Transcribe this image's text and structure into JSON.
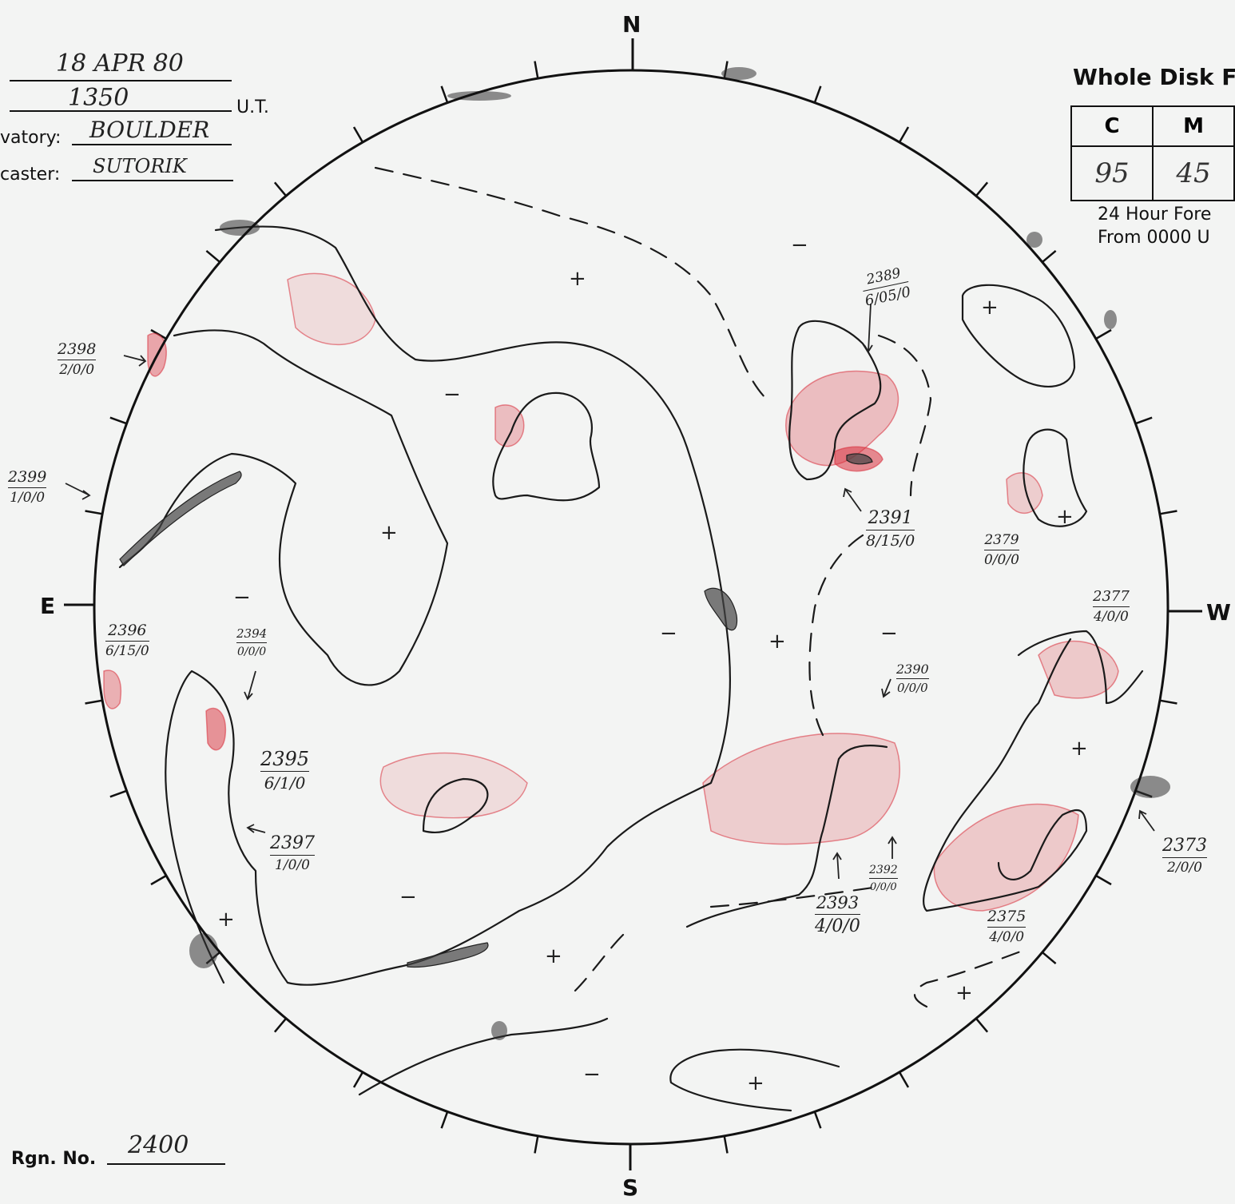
{
  "header": {
    "date_label": "",
    "date_value": "18 APR 80",
    "time_value": "1350",
    "time_unit": "U.T.",
    "observatory_label": "vatory:",
    "observatory_value": "BOULDER",
    "forecaster_label": "caster:",
    "forecaster_value": "SUTORIK"
  },
  "compass": {
    "north": "N",
    "south": "S",
    "east": "E",
    "west": "W"
  },
  "whole_disk": {
    "title": "Whole Disk F",
    "columns": [
      "C",
      "M"
    ],
    "values": [
      "95",
      "45"
    ],
    "forecast_line1": "24 Hour Fore",
    "forecast_line2": "From 0000 U"
  },
  "region_count": {
    "label": "Rgn. No.",
    "value": "2400"
  },
  "regions": [
    {
      "id": "r2398",
      "number": "2398",
      "cls": "2/0/0"
    },
    {
      "id": "r2399",
      "number": "2399",
      "cls": "1/0/0"
    },
    {
      "id": "r2396",
      "number": "2396",
      "cls": "6/15/0"
    },
    {
      "id": "r2394",
      "number": "2394",
      "cls": "0/0/0"
    },
    {
      "id": "r2395",
      "number": "2395",
      "cls": "6/1/0"
    },
    {
      "id": "r2397",
      "number": "2397",
      "cls": "1/0/0"
    },
    {
      "id": "r2389",
      "number": "2389",
      "cls": "6/05/0"
    },
    {
      "id": "r2391",
      "number": "2391",
      "cls": "8/15/0"
    },
    {
      "id": "r2379",
      "number": "2379",
      "cls": "0/0/0"
    },
    {
      "id": "r2377",
      "number": "2377",
      "cls": "4/0/0"
    },
    {
      "id": "r2390",
      "number": "2390",
      "cls": "0/0/0"
    },
    {
      "id": "r2392",
      "number": "2392",
      "cls": "0/0/0"
    },
    {
      "id": "r2393",
      "number": "2393",
      "cls": "4/0/0"
    },
    {
      "id": "r2375",
      "number": "2375",
      "cls": "4/0/0"
    },
    {
      "id": "r2373",
      "number": "2373",
      "cls": "2/0/0"
    }
  ],
  "polarity": {
    "plus": "+",
    "minus": "−"
  },
  "colors": {
    "ink": "#1a1a1a",
    "plage": "#d9303c",
    "filament": "#333333",
    "paper": "#f3f4f3"
  }
}
